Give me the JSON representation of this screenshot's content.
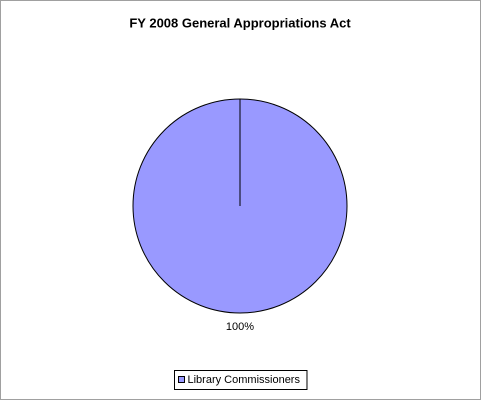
{
  "chart_data": {
    "type": "pie",
    "title": "FY 2008 General Appropriations Act",
    "categories": [
      "Library Commissioners"
    ],
    "values": [
      100
    ],
    "value_labels": [
      "100%"
    ],
    "colors": [
      "#9999ff"
    ],
    "legend": "bottom"
  }
}
